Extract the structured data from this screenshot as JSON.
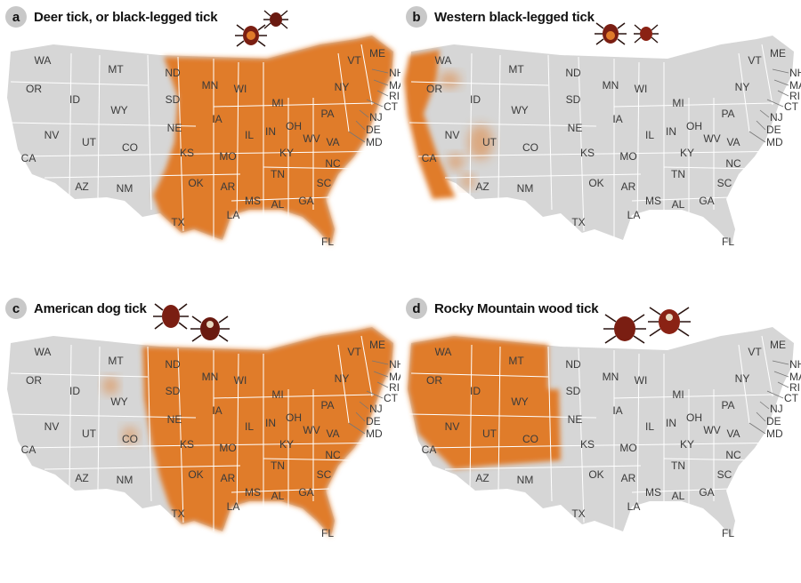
{
  "panels": [
    {
      "letter": "a",
      "title": "Deer tick, or black-legged tick"
    },
    {
      "letter": "b",
      "title": "Western black-legged tick"
    },
    {
      "letter": "c",
      "title": "American dog tick"
    },
    {
      "letter": "d",
      "title": "Rocky Mountain wood tick"
    }
  ],
  "state_labels": [
    "WA",
    "OR",
    "CA",
    "ID",
    "NV",
    "MT",
    "WY",
    "UT",
    "AZ",
    "CO",
    "NM",
    "ND",
    "SD",
    "NE",
    "KS",
    "OK",
    "TX",
    "MN",
    "IA",
    "MO",
    "AR",
    "LA",
    "WI",
    "IL",
    "MI",
    "IN",
    "KY",
    "TN",
    "MS",
    "AL",
    "OH",
    "GA",
    "FL",
    "SC",
    "NC",
    "VA",
    "WV",
    "PA",
    "NY",
    "VT",
    "ME",
    "NH",
    "MA",
    "RI",
    "CT",
    "NJ",
    "DE",
    "MD"
  ],
  "colors": {
    "land": "#d6d6d6",
    "range": "#e07b2a",
    "border": "#ffffff",
    "badge": "#c8c8c8",
    "tick": "#7a1e12"
  },
  "icons": [
    "tick-icon"
  ]
}
